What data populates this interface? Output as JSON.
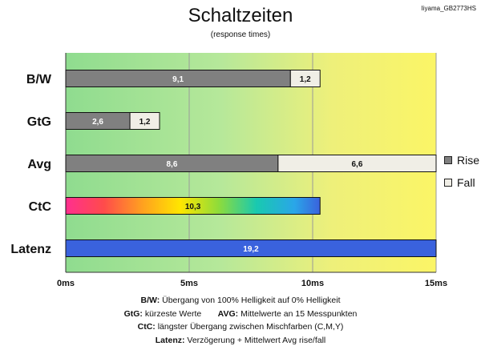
{
  "model_label": "Iiyama_GB2773HS",
  "chart_data": {
    "type": "bar",
    "orientation": "horizontal",
    "stacked": true,
    "title": "Schaltzeiten",
    "subtitle": "(response times)",
    "unit": "ms",
    "xlim": [
      0,
      15
    ],
    "x_ticks": [
      "0ms",
      "5ms",
      "10ms",
      "15ms"
    ],
    "categories": [
      "B/W",
      "GtG",
      "Avg",
      "CtC",
      "Latenz"
    ],
    "series": [
      {
        "name": "Rise",
        "color": "#808080",
        "values": [
          9.1,
          2.6,
          8.6,
          null,
          null
        ]
      },
      {
        "name": "Fall",
        "color": "#f0eee6",
        "values": [
          1.2,
          1.2,
          6.6,
          null,
          null
        ]
      }
    ],
    "single_bars": [
      {
        "category": "CtC",
        "value": 10.3,
        "label": "10,3",
        "fill": "rainbow"
      },
      {
        "category": "Latenz",
        "value": 19.2,
        "label": "19,2",
        "fill": "#3a62dd"
      }
    ],
    "segment_labels": [
      [
        "9,1",
        "1,2"
      ],
      [
        "2,6",
        "1,2"
      ],
      [
        "8,6",
        "6,6"
      ]
    ],
    "background": "gradient green to yellow",
    "grid": true,
    "legend_position": "right"
  },
  "legend": {
    "rise_label": "Rise",
    "fall_label": "Fall",
    "rise_color": "#808080",
    "fall_color": "#f0eee6"
  },
  "notes": {
    "bw_key": "B/W:",
    "bw_text": " Übergang von 100% Helligkeit auf 0% Helligkeit",
    "gtg_key": "GtG:",
    "gtg_text": " kürzeste Werte",
    "avg_key": "AVG:",
    "avg_text": " Mittelwerte an 15 Messpunkten",
    "ctc_key": "CtC:",
    "ctc_text": " längster Übergang zwischen Mischfarben (C,M,Y)",
    "lat_key": "Latenz:",
    "lat_text": " Verzögerung  + Mittelwert Avg rise/fall"
  }
}
